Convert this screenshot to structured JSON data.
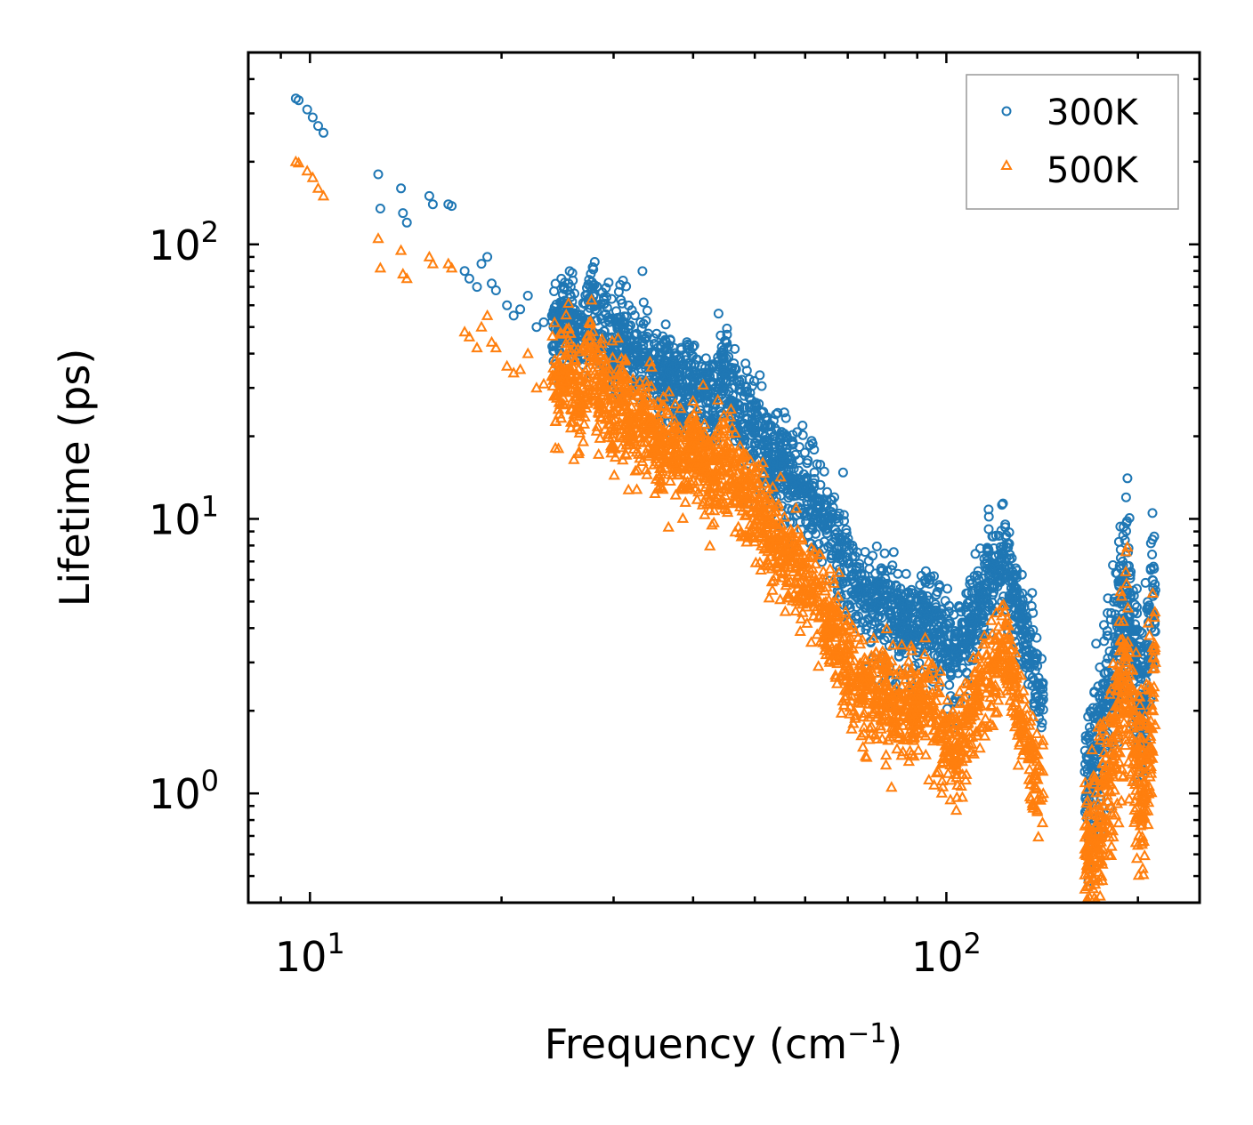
{
  "chart_data": {
    "type": "scatter",
    "xscale": "log",
    "yscale": "log",
    "xlabel": "Frequency (cm",
    "xlabel_sup": "−1",
    "xlabel_end": ")",
    "ylabel": "Lifetime (ps)",
    "xlim": [
      8,
      250
    ],
    "ylim": [
      0.4,
      500
    ],
    "xticks": [
      {
        "value": 10,
        "base": "10",
        "exp": "1"
      },
      {
        "value": 100,
        "base": "10",
        "exp": "2"
      }
    ],
    "yticks": [
      {
        "value": 1,
        "base": "10",
        "exp": "0"
      },
      {
        "value": 10,
        "base": "10",
        "exp": "1"
      },
      {
        "value": 100,
        "base": "10",
        "exp": "2"
      }
    ],
    "legend_position": "top-right",
    "series": [
      {
        "name": "300K",
        "marker": "circle",
        "color": "#1f77b4",
        "x": [
          9.5,
          9.6,
          9.9,
          10.1,
          10.3,
          10.5,
          12.8,
          12.9,
          13.9,
          14.0,
          14.2,
          15.4,
          15.6,
          16.5,
          16.7,
          17.5,
          17.8,
          18.3,
          18.6,
          19.0,
          19.3,
          19.6,
          20.4,
          20.9,
          21.4,
          22.0,
          22.7,
          23.3,
          24.0,
          24.6,
          25.4,
          26.1,
          26.8,
          27.6,
          28.4,
          29.1,
          30.0,
          30.6,
          31.5,
          32.3,
          33.4,
          34.4,
          35.4,
          36.5,
          37.5,
          38.6,
          39.7,
          40.9,
          42.1,
          43.3,
          44.6,
          45.9,
          47.3,
          48.6,
          50.1,
          51.6,
          53.1,
          54.6,
          56.2,
          57.9,
          59.6,
          61.3,
          63.1,
          65.0,
          66.9,
          68.9,
          70.9,
          73.0,
          75.1,
          77.3,
          79.6,
          81.9,
          84.3,
          86.8,
          89.3,
          92.0,
          94.7,
          97.4,
          100.3,
          103.2,
          106.3,
          109.4,
          112.6,
          115.9,
          119.3,
          122.8,
          126.4,
          130.1,
          134.0,
          137.9,
          142.0,
          165.0,
          168.0,
          171.0,
          174.0,
          177.0,
          180.0,
          183.0,
          186.0,
          189.0,
          192.0,
          195.0,
          198.0,
          201.0,
          204.0,
          207.0,
          210.0,
          213.0
        ],
        "y": [
          340,
          335,
          310,
          290,
          270,
          255,
          180,
          135,
          160,
          130,
          120,
          150,
          140,
          140,
          138,
          80,
          75,
          70,
          85,
          90,
          72,
          68,
          60,
          55,
          58,
          65,
          50,
          52,
          55,
          48,
          58,
          50,
          46,
          70,
          44,
          52,
          36,
          50,
          42,
          38,
          38,
          36,
          32,
          34,
          30,
          29,
          33,
          30,
          28,
          26,
          32,
          27,
          25,
          23,
          21,
          19,
          16,
          17,
          14.5,
          13.5,
          13,
          12.5,
          11,
          9.5,
          8.5,
          7,
          6.2,
          5.5,
          5.2,
          4.8,
          4.9,
          4.5,
          4.2,
          4.4,
          4.0,
          4.6,
          4.3,
          3.8,
          3.5,
          3.2,
          3.6,
          4.2,
          5.0,
          5.8,
          6.5,
          7.5,
          6.0,
          4.5,
          3.5,
          2.8,
          2.2,
          1.2,
          1.1,
          1.3,
          1.5,
          1.8,
          2.2,
          2.8,
          3.5,
          4.5,
          5.5,
          4.0,
          3.0,
          2.4,
          2.0,
          2.8,
          4.0,
          5.5
        ],
        "density": 2600
      },
      {
        "name": "500K",
        "marker": "triangle",
        "color": "#ff7f0e",
        "x": [
          9.5,
          9.6,
          9.9,
          10.1,
          10.3,
          10.5,
          12.8,
          12.9,
          13.9,
          14.0,
          14.2,
          15.4,
          15.6,
          16.5,
          16.7,
          17.5,
          17.8,
          18.3,
          18.6,
          19.0,
          19.3,
          19.6,
          20.4,
          20.9,
          21.4,
          22.0,
          22.7,
          23.3,
          24.0,
          24.6,
          25.4,
          26.1,
          26.8,
          27.6,
          28.4,
          29.1,
          30.0,
          30.6,
          31.5,
          32.3,
          33.4,
          34.4,
          35.4,
          36.5,
          37.5,
          38.6,
          39.7,
          40.9,
          42.1,
          43.3,
          44.6,
          45.9,
          47.3,
          48.6,
          50.1,
          51.6,
          53.1,
          54.6,
          56.2,
          57.9,
          59.6,
          61.3,
          63.1,
          65.0,
          66.9,
          68.9,
          70.9,
          73.0,
          75.1,
          77.3,
          79.6,
          81.9,
          84.3,
          86.8,
          89.3,
          92.0,
          94.7,
          97.4,
          100.3,
          103.2,
          106.3,
          109.4,
          112.6,
          115.9,
          119.3,
          122.8,
          126.4,
          130.1,
          134.0,
          137.9,
          142.0,
          165.0,
          168.0,
          171.0,
          174.0,
          177.0,
          180.0,
          183.0,
          186.0,
          189.0,
          192.0,
          195.0,
          198.0,
          201.0,
          204.0,
          207.0,
          210.0,
          213.0
        ],
        "y": [
          200,
          198,
          185,
          175,
          160,
          150,
          105,
          82,
          95,
          78,
          75,
          90,
          85,
          85,
          82,
          48,
          46,
          42,
          50,
          55,
          44,
          42,
          36,
          34,
          35,
          40,
          30,
          31,
          33,
          29,
          35,
          30,
          27,
          42,
          26,
          31,
          21,
          30,
          25,
          22,
          22,
          21,
          18,
          19,
          17,
          16,
          18,
          16,
          15,
          14,
          17,
          14,
          13,
          12,
          10.5,
          9.5,
          8,
          8.5,
          7.2,
          6.6,
          6.2,
          5.8,
          5.0,
          4.2,
          3.7,
          3.1,
          2.8,
          2.6,
          2.4,
          2.2,
          2.3,
          2.1,
          2.0,
          2.1,
          1.9,
          2.2,
          2.0,
          1.7,
          1.5,
          1.4,
          1.6,
          1.9,
          2.3,
          2.7,
          3.0,
          3.4,
          2.7,
          2.0,
          1.5,
          1.2,
          1.0,
          0.6,
          0.55,
          0.65,
          0.75,
          0.9,
          1.1,
          1.4,
          1.8,
          2.4,
          3.0,
          2.0,
          1.5,
          1.2,
          1.0,
          1.4,
          2.1,
          3.0
        ],
        "density": 2600
      }
    ]
  }
}
